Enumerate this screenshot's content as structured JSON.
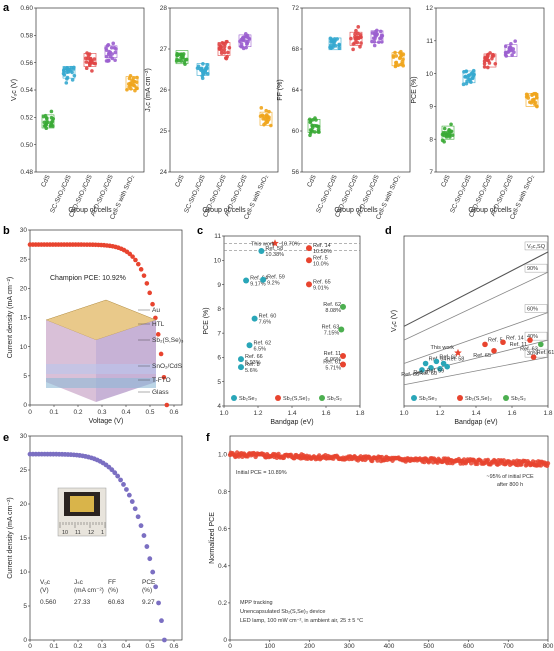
{
  "colors": {
    "cds": "#3aaa35",
    "sc": "#35a8cf",
    "cbd": "#e04545",
    "ald": "#9b5fcf",
    "cells": "#f0a51c",
    "red": "#e8442f",
    "purple": "#7b6fc2",
    "teal": "#29a6b8"
  },
  "panel_a": {
    "label": "a",
    "xlabel": "Group of cells",
    "groups": [
      "CdS",
      "SC-SnO₂/CdS",
      "CBD-SnO₂/CdS",
      "ALD-SnO₂/CdS",
      "Cell-S with SnO₂"
    ],
    "subplots": [
      {
        "ylabel": "Vₒc (V)",
        "ylim": [
          0.48,
          0.6
        ],
        "ticks": [
          "0.48",
          "0.50",
          "0.52",
          "0.54",
          "0.56",
          "0.58",
          "0.60"
        ],
        "medians": [
          0.517,
          0.553,
          0.562,
          0.568,
          0.545
        ]
      },
      {
        "ylabel": "Jₛc (mA cm⁻²)",
        "ylim": [
          24,
          28
        ],
        "ticks": [
          "24",
          "25",
          "26",
          "27",
          "28"
        ],
        "medians": [
          26.8,
          26.5,
          27.0,
          27.2,
          25.3
        ]
      },
      {
        "ylabel": "FF (%)",
        "ylim": [
          56,
          72
        ],
        "ticks": [
          "56",
          "60",
          "64",
          "68",
          "72"
        ],
        "medians": [
          60.5,
          68.5,
          69.0,
          69.2,
          67.0
        ]
      },
      {
        "ylabel": "PCE (%)",
        "ylim": [
          7,
          12
        ],
        "ticks": [
          "7",
          "8",
          "9",
          "10",
          "11",
          "12"
        ],
        "medians": [
          8.2,
          9.9,
          10.4,
          10.7,
          9.2
        ]
      }
    ]
  },
  "panel_b": {
    "label": "b",
    "xlabel": "Voltage (V)",
    "ylabel": "Current density (mA cm⁻²)",
    "xticks": [
      "0",
      "0.1",
      "0.2",
      "0.3",
      "0.4",
      "0.5",
      "0.6"
    ],
    "yticks": [
      "0",
      "5",
      "10",
      "15",
      "20",
      "25",
      "30"
    ],
    "champion": "Champion PCE: 10.92%",
    "layers": [
      "Au",
      "HTL",
      "Sb₂(S,Se)₃",
      "SnO₂/CdS",
      "T-FTO",
      "Glass"
    ]
  },
  "panel_c": {
    "label": "c",
    "xlabel": "Bandgap (eV)",
    "ylabel": "PCE (%)",
    "xticks": [
      "1.0",
      "1.2",
      "1.4",
      "1.6",
      "1.8"
    ],
    "yticks": [
      "4",
      "5",
      "6",
      "7",
      "8",
      "9",
      "10",
      "11"
    ],
    "this_work": "This work",
    "this_work_value": "10.70%",
    "legend": [
      "Sb₂Se₃",
      "Sb₂(S,Se)₃",
      "Sb₂S₃"
    ],
    "points": [
      {
        "type": "sb2se3",
        "x": 1.22,
        "y": 10.38,
        "label": "Ref. 58\n10.38%"
      },
      {
        "type": "sb2sse3",
        "x": 1.5,
        "y": 10.5,
        "label": "Ref. 14\n10.50%"
      },
      {
        "type": "sb2sse3",
        "x": 1.5,
        "y": 10.0,
        "label": "Ref. 5\n10.0%"
      },
      {
        "type": "sb2se3",
        "x": 1.13,
        "y": 9.17,
        "label": "Ref. 64\n9.17%"
      },
      {
        "type": "sb2se3",
        "x": 1.23,
        "y": 9.2,
        "label": "Ref. 59\n9.2%"
      },
      {
        "type": "sb2sse3",
        "x": 1.5,
        "y": 9.01,
        "label": "Ref. 65\n9.01%"
      },
      {
        "type": "sb2s3",
        "x": 1.7,
        "y": 8.08,
        "label": "Ref. 62\n8.08%"
      },
      {
        "type": "sb2se3",
        "x": 1.18,
        "y": 7.6,
        "label": "Ref. 60\n7.6%"
      },
      {
        "type": "sb2s3",
        "x": 1.69,
        "y": 7.15,
        "label": "Ref. 63\n7.15%"
      },
      {
        "type": "sb2se3",
        "x": 1.15,
        "y": 6.5,
        "label": "Ref. 62\n6.5%"
      },
      {
        "type": "sb2sse3",
        "x": 1.7,
        "y": 6.06,
        "label": "Ref. 11\n6.06%"
      },
      {
        "type": "sb2se3",
        "x": 1.1,
        "y": 5.93,
        "label": "Ref. 66\n5.93%"
      },
      {
        "type": "sb2sse3",
        "x": 1.7,
        "y": 5.71,
        "label": "Ref. 61\n5.71%"
      },
      {
        "type": "sb2se3",
        "x": 1.1,
        "y": 5.6,
        "label": "Ref. 8\n5.6%"
      }
    ]
  },
  "panel_d": {
    "label": "d",
    "xlabel": "Bandgap (eV)",
    "ylabel": "Vₒc (V)",
    "xticks": [
      "1.0",
      "1.2",
      "1.4",
      "1.6",
      "1.8"
    ],
    "lines": [
      "Vₒc,SQ",
      "90%",
      "60%",
      "40%",
      "30%"
    ],
    "this_work": "This work",
    "legend": [
      "Sb₂Se₃",
      "Sb₂(S,Se)₃",
      "Sb₂S₃"
    ],
    "refs": [
      "Ref. 66",
      "Ref. 64",
      "Ref. 8",
      "Ref. 62",
      "Ref. 60",
      "Ref. 58",
      "Ref. 59",
      "Ref. 5",
      "Ref. 65",
      "Ref. 14",
      "Ref. 11",
      "Ref. 61",
      "Ref. 63"
    ]
  },
  "panel_e": {
    "label": "e",
    "xlabel": "Voltage (V)",
    "ylabel": "Current density (mA cm⁻²)",
    "xticks": [
      "0",
      "0.1",
      "0.2",
      "0.3",
      "0.4",
      "0.5",
      "0.6"
    ],
    "yticks": [
      "0",
      "5",
      "10",
      "15",
      "20",
      "25",
      "30"
    ],
    "ruler": [
      "10",
      "11",
      "12",
      "1"
    ],
    "table_headers": [
      "Vₒc",
      "Jₛc",
      "FF",
      "PCE"
    ],
    "table_units": [
      "(V)",
      "(mA cm⁻²)",
      "(%)",
      "(%)"
    ],
    "table_values": [
      "0.560",
      "27.33",
      "60.63",
      "9.27"
    ]
  },
  "panel_f": {
    "label": "f",
    "xlabel": "Time (h)",
    "ylabel": "Normalized PCE",
    "xticks": [
      "0",
      "100",
      "200",
      "300",
      "400",
      "500",
      "600",
      "700",
      "800"
    ],
    "yticks": [
      "0",
      "0.2",
      "0.4",
      "0.6",
      "0.8",
      "1.0"
    ],
    "initial": "Initial PCE = 10.89%",
    "retain": "~95% of initial PCE\nafter 800 h",
    "conditions": [
      "MPP tracking",
      "Unencapsulated Sb₂(S,Se)₃ device",
      "LED lamp, 100 mW cm⁻², in ambient air, 25 ± 5 °C"
    ]
  }
}
